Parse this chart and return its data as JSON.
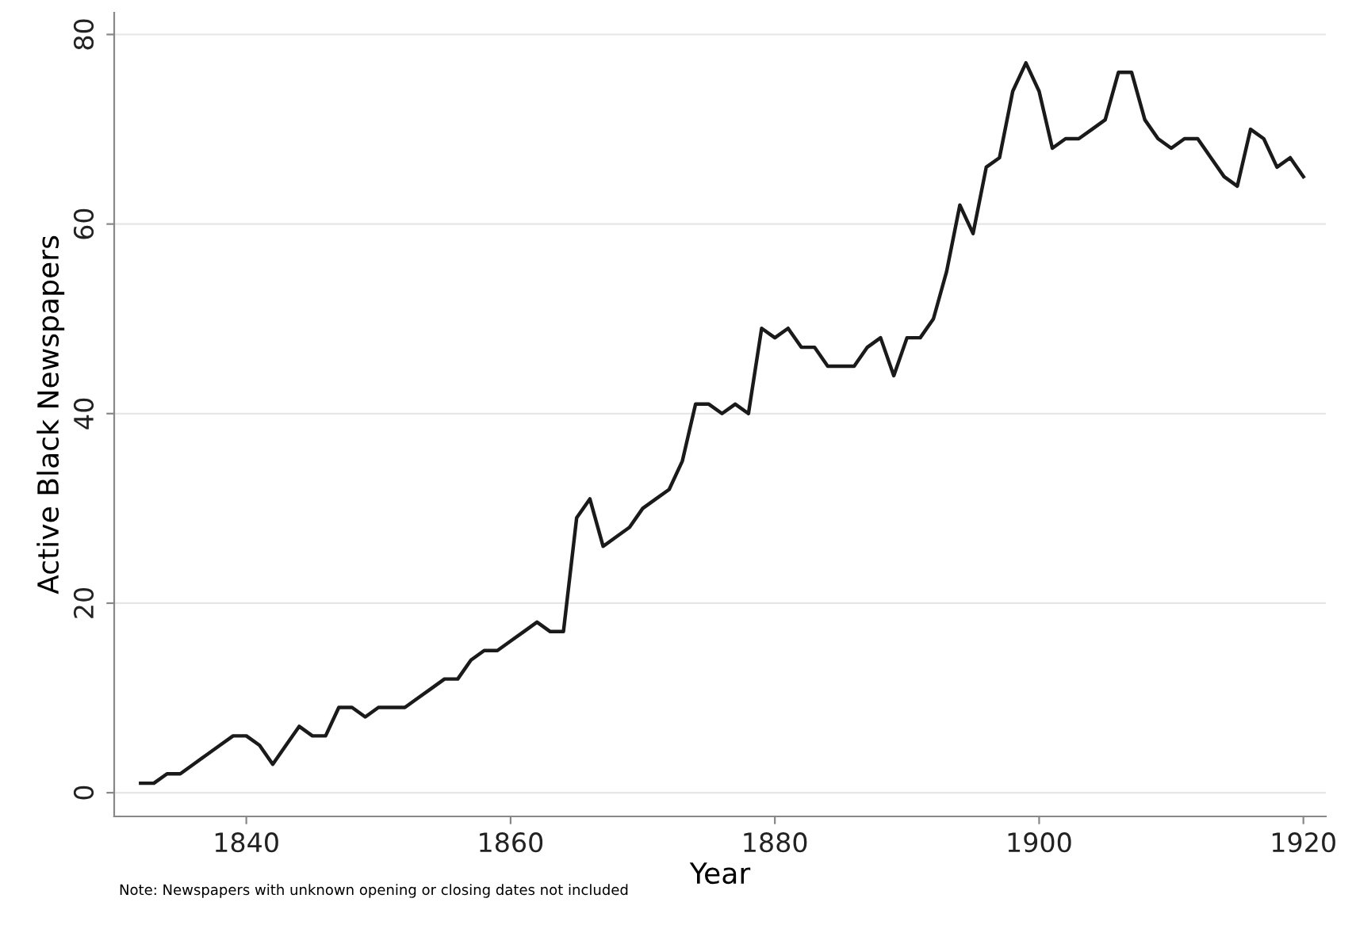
{
  "chart_data": {
    "type": "line",
    "xlabel": "Year",
    "ylabel": "Active Black Newspapers",
    "annotations": [
      "Note: Newspapers with unknown opening or closing dates not included"
    ],
    "x": [
      1832,
      1833,
      1834,
      1835,
      1836,
      1837,
      1838,
      1839,
      1840,
      1841,
      1842,
      1843,
      1844,
      1845,
      1846,
      1847,
      1848,
      1849,
      1850,
      1851,
      1852,
      1853,
      1854,
      1855,
      1856,
      1857,
      1858,
      1859,
      1860,
      1861,
      1862,
      1863,
      1864,
      1865,
      1866,
      1867,
      1868,
      1869,
      1870,
      1871,
      1872,
      1873,
      1874,
      1875,
      1876,
      1877,
      1878,
      1879,
      1880,
      1881,
      1882,
      1883,
      1884,
      1885,
      1886,
      1887,
      1888,
      1889,
      1890,
      1891,
      1892,
      1893,
      1894,
      1895,
      1896,
      1897,
      1898,
      1899,
      1900,
      1901,
      1902,
      1903,
      1904,
      1905,
      1906,
      1907,
      1908,
      1909,
      1910,
      1911,
      1912,
      1913,
      1914,
      1915,
      1916,
      1917,
      1918,
      1919,
      1920
    ],
    "series": [
      {
        "color": "#1a1a1a",
        "values": [
          1,
          1,
          2,
          2,
          3,
          4,
          5,
          6,
          6,
          5,
          3,
          5,
          7,
          6,
          6,
          9,
          9,
          8,
          9,
          9,
          9,
          10,
          11,
          12,
          12,
          14,
          15,
          15,
          16,
          17,
          18,
          17,
          17,
          29,
          31,
          26,
          27,
          28,
          30,
          31,
          32,
          35,
          41,
          41,
          40,
          41,
          40,
          49,
          48,
          49,
          47,
          47,
          45,
          45,
          45,
          47,
          48,
          44,
          48,
          48,
          50,
          55,
          62,
          59,
          66,
          67,
          74,
          77,
          74,
          68,
          69,
          69,
          70,
          71,
          76,
          76,
          71,
          69,
          68,
          69,
          69,
          67,
          65,
          64,
          70,
          69,
          66,
          67,
          65
        ]
      }
    ],
    "xlim": [
      1830,
      1921.7
    ],
    "ylim": [
      -2.5,
      82.3
    ],
    "xticks": [
      1840,
      1860,
      1880,
      1900,
      1920
    ],
    "yticks": [
      0,
      20,
      40,
      60,
      80
    ],
    "grid": "y",
    "marker": "none",
    "line_style": "solid",
    "legend": false
  }
}
